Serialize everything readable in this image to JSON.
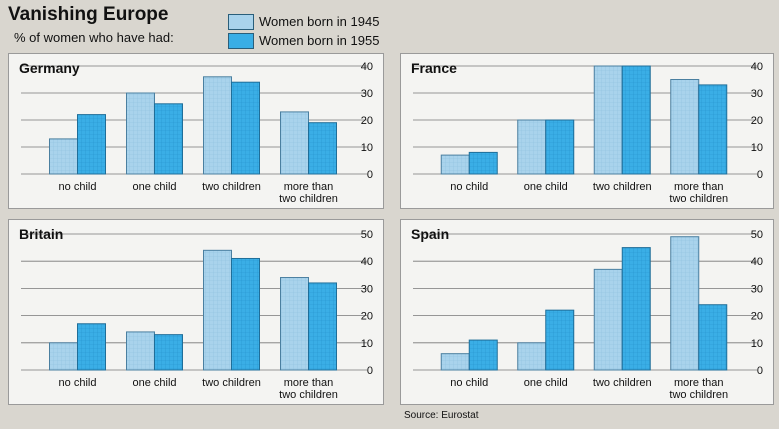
{
  "title": "Vanishing Europe",
  "subtitle": "% of women who have had:",
  "legend": [
    {
      "label": "Women born in 1945",
      "color": "#a9d3ec"
    },
    {
      "label": "Women born in 1955",
      "color": "#3aaee6"
    }
  ],
  "source": "Source: Eurostat",
  "chart_data": [
    {
      "type": "bar",
      "title": "Germany",
      "categories": [
        "no child",
        "one child",
        "two children",
        "more than two children"
      ],
      "series": [
        {
          "name": "Women born in 1945",
          "values": [
            13,
            30,
            36,
            23
          ]
        },
        {
          "name": "Women born in 1955",
          "values": [
            22,
            26,
            34,
            19
          ]
        }
      ],
      "ylim": [
        0,
        40
      ],
      "yticks": [
        0,
        10,
        20,
        30,
        40
      ]
    },
    {
      "type": "bar",
      "title": "France",
      "categories": [
        "no child",
        "one child",
        "two children",
        "more than two children"
      ],
      "series": [
        {
          "name": "Women born in 1945",
          "values": [
            7,
            20,
            40,
            35
          ]
        },
        {
          "name": "Women born in 1955",
          "values": [
            8,
            20,
            40,
            33
          ]
        }
      ],
      "ylim": [
        0,
        40
      ],
      "yticks": [
        0,
        10,
        20,
        30,
        40
      ]
    },
    {
      "type": "bar",
      "title": "Britain",
      "categories": [
        "no child",
        "one child",
        "two children",
        "more than two children"
      ],
      "series": [
        {
          "name": "Women born in 1945",
          "values": [
            10,
            14,
            44,
            34
          ]
        },
        {
          "name": "Women born in 1955",
          "values": [
            17,
            13,
            41,
            32
          ]
        }
      ],
      "ylim": [
        0,
        50
      ],
      "yticks": [
        0,
        10,
        20,
        30,
        40,
        50
      ]
    },
    {
      "type": "bar",
      "title": "Spain",
      "categories": [
        "no child",
        "one child",
        "two children",
        "more than two children"
      ],
      "series": [
        {
          "name": "Women born in 1945",
          "values": [
            6,
            10,
            37,
            49
          ]
        },
        {
          "name": "Women born in 1955",
          "values": [
            11,
            22,
            45,
            24
          ]
        }
      ],
      "ylim": [
        0,
        50
      ],
      "yticks": [
        0,
        10,
        20,
        30,
        40,
        50
      ]
    }
  ]
}
